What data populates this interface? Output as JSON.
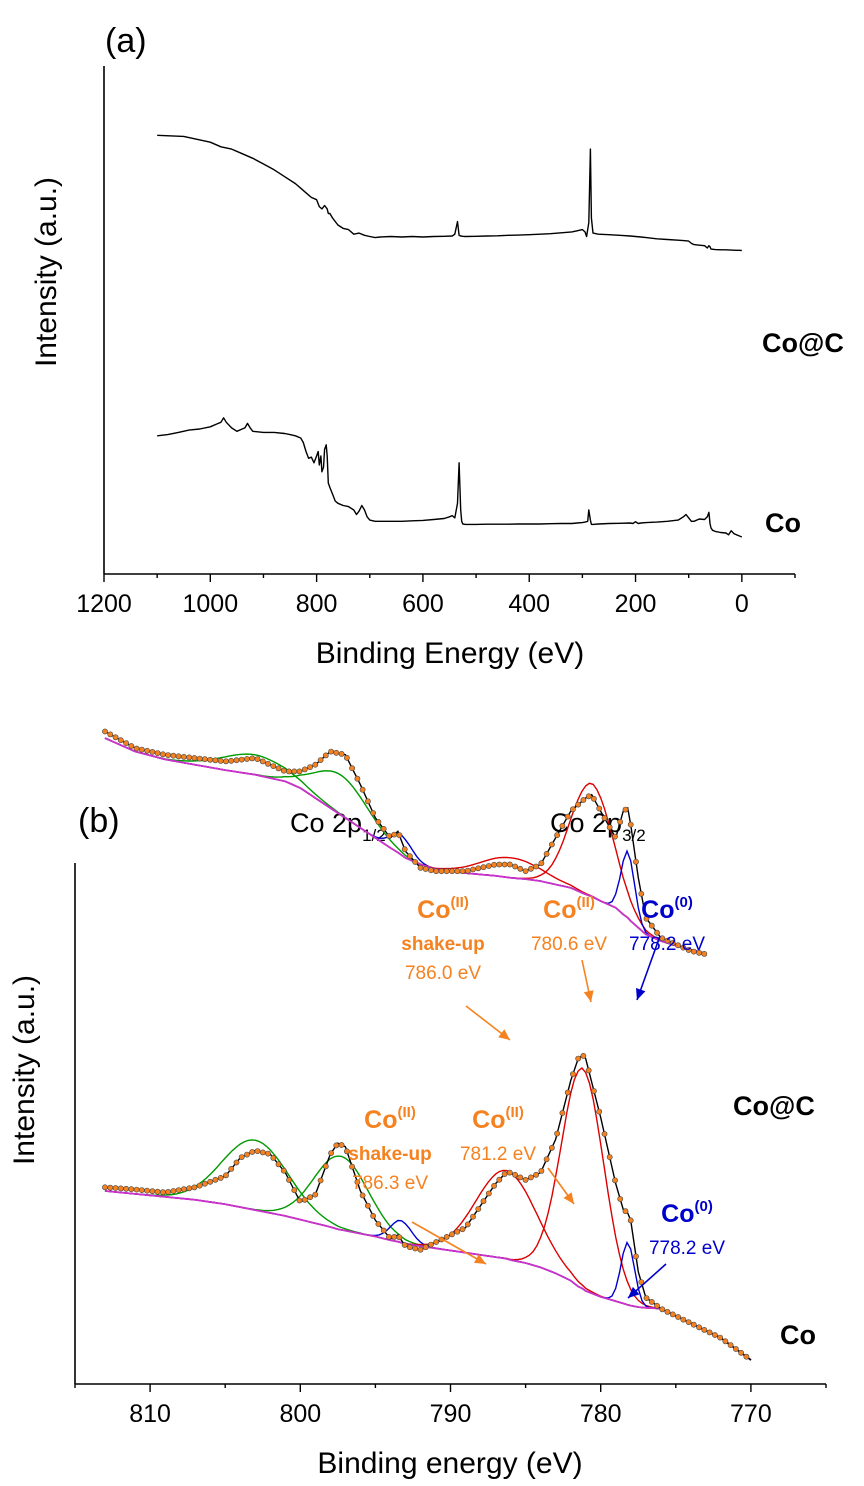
{
  "chart_data": [
    {
      "panel_label": "(a)",
      "type": "line",
      "xlabel": "Binding Energy (eV)",
      "ylabel": "Intensity (a.u.)",
      "xlim": [
        1200,
        -100
      ],
      "x_reversed": true,
      "x_ticks": [
        1200,
        1000,
        800,
        600,
        400,
        200,
        0
      ],
      "y_units": "arbitrary (relative, 0–1)",
      "ylim": [
        0,
        1
      ],
      "grid": false,
      "series": [
        {
          "name": "Co@C",
          "color": "#000000",
          "x": [
            1100,
            1050,
            1000,
            980,
            960,
            940,
            920,
            900,
            880,
            860,
            840,
            830,
            820,
            810,
            800,
            795,
            790,
            785,
            780,
            778,
            775,
            770,
            760,
            750,
            740,
            730,
            720,
            710,
            700,
            690,
            680,
            660,
            640,
            620,
            600,
            580,
            560,
            545,
            540,
            535,
            532,
            529,
            525,
            520,
            500,
            480,
            460,
            440,
            420,
            400,
            380,
            360,
            340,
            320,
            310,
            300,
            295,
            292,
            288,
            285,
            283,
            280,
            270,
            250,
            230,
            210,
            200,
            190,
            180,
            160,
            140,
            120,
            110,
            100,
            95,
            90,
            80,
            70,
            65,
            62,
            60,
            58,
            50,
            40,
            30,
            20,
            10,
            5,
            0
          ],
          "y": [
            0.89,
            0.885,
            0.86,
            0.84,
            0.83,
            0.81,
            0.79,
            0.765,
            0.74,
            0.71,
            0.68,
            0.66,
            0.64,
            0.62,
            0.61,
            0.58,
            0.57,
            0.585,
            0.57,
            0.55,
            0.55,
            0.53,
            0.5,
            0.485,
            0.48,
            0.46,
            0.465,
            0.455,
            0.45,
            0.445,
            0.448,
            0.45,
            0.448,
            0.45,
            0.448,
            0.45,
            0.451,
            0.452,
            0.46,
            0.515,
            0.455,
            0.452,
            0.451,
            0.45,
            0.451,
            0.452,
            0.453,
            0.455,
            0.456,
            0.458,
            0.46,
            0.462,
            0.466,
            0.47,
            0.475,
            0.48,
            0.47,
            0.45,
            0.51,
            0.83,
            0.53,
            0.465,
            0.46,
            0.458,
            0.455,
            0.452,
            0.45,
            0.448,
            0.445,
            0.44,
            0.437,
            0.434,
            0.432,
            0.43,
            0.42,
            0.415,
            0.412,
            0.41,
            0.4,
            0.41,
            0.405,
            0.395,
            0.393,
            0.392,
            0.392,
            0.391,
            0.39,
            0.39,
            0.389
          ]
        },
        {
          "name": "Co",
          "color": "#000000",
          "x": [
            1100,
            1080,
            1060,
            1040,
            1020,
            1000,
            990,
            985,
            980,
            975,
            970,
            960,
            950,
            940,
            935,
            930,
            925,
            920,
            900,
            880,
            860,
            850,
            840,
            830,
            825,
            820,
            815,
            810,
            805,
            800,
            797,
            795,
            792,
            790,
            787,
            785,
            782,
            780,
            778,
            775,
            770,
            765,
            760,
            750,
            740,
            730,
            725,
            720,
            715,
            710,
            705,
            700,
            690,
            680,
            660,
            640,
            620,
            600,
            580,
            560,
            550,
            545,
            540,
            535,
            532,
            529,
            527,
            525,
            520,
            500,
            480,
            460,
            440,
            420,
            400,
            380,
            360,
            340,
            320,
            310,
            300,
            295,
            290,
            288,
            285,
            283,
            280,
            270,
            250,
            230,
            210,
            205,
            200,
            195,
            190,
            180,
            160,
            140,
            120,
            110,
            105,
            100,
            95,
            90,
            80,
            70,
            65,
            62,
            60,
            58,
            55,
            50,
            40,
            30,
            25,
            20,
            15,
            10,
            5,
            0
          ],
          "y": [
            0.45,
            0.455,
            0.465,
            0.475,
            0.48,
            0.49,
            0.5,
            0.505,
            0.51,
            0.53,
            0.51,
            0.485,
            0.47,
            0.48,
            0.485,
            0.505,
            0.485,
            0.47,
            0.465,
            0.465,
            0.46,
            0.455,
            0.45,
            0.44,
            0.42,
            0.38,
            0.35,
            0.355,
            0.33,
            0.36,
            0.38,
            0.32,
            0.36,
            0.29,
            0.31,
            0.39,
            0.41,
            0.36,
            0.24,
            0.22,
            0.19,
            0.16,
            0.15,
            0.14,
            0.135,
            0.12,
            0.1,
            0.115,
            0.14,
            0.12,
            0.09,
            0.075,
            0.07,
            0.07,
            0.07,
            0.07,
            0.072,
            0.074,
            0.078,
            0.082,
            0.09,
            0.095,
            0.085,
            0.15,
            0.33,
            0.12,
            0.07,
            0.058,
            0.056,
            0.056,
            0.057,
            0.057,
            0.057,
            0.058,
            0.058,
            0.058,
            0.059,
            0.06,
            0.06,
            0.062,
            0.064,
            0.066,
            0.07,
            0.12,
            0.075,
            0.056,
            0.056,
            0.058,
            0.06,
            0.061,
            0.062,
            0.06,
            0.068,
            0.06,
            0.062,
            0.064,
            0.066,
            0.07,
            0.075,
            0.09,
            0.1,
            0.085,
            0.07,
            0.07,
            0.08,
            0.078,
            0.09,
            0.11,
            0.06,
            0.04,
            0.03,
            0.025,
            0.02,
            0.018,
            0.01,
            0.028,
            0.015,
            0.01,
            0.005,
            0.0
          ]
        }
      ]
    },
    {
      "panel_label": "(b)",
      "type": "line",
      "xlabel": "Binding energy (eV)",
      "ylabel": "Intensity (a.u.)",
      "xlim": [
        815,
        765
      ],
      "x_reversed": true,
      "x_ticks": [
        810,
        800,
        790,
        780,
        770
      ],
      "y_units": "arbitrary (relative, 0–1)",
      "ylim": [
        0,
        1
      ],
      "grid": false,
      "header_labels": [
        {
          "text": "Co 2p",
          "subscript": "1/2"
        },
        {
          "text": "Co 2p",
          "subscript": "3/2"
        }
      ],
      "colors": {
        "data_points": "#f58220",
        "envelope": "#000000",
        "background": "#cc33cc",
        "co0_component": "#0000cc",
        "co2_component": "#dd0000",
        "satellite_component": "#009900"
      },
      "series": [
        {
          "name": "Co@C",
          "x": [
            813,
            811,
            809,
            807,
            805,
            803,
            801,
            800,
            799,
            798,
            797,
            796,
            795,
            794,
            793.5,
            793,
            792,
            791,
            790,
            789,
            788,
            787,
            786,
            785,
            784,
            783,
            782,
            781,
            780.6,
            780,
            779,
            778.5,
            778.2,
            778,
            777.5,
            777,
            776,
            775,
            774,
            773
          ],
          "y": [
            0.9,
            0.875,
            0.865,
            0.86,
            0.855,
            0.86,
            0.84,
            0.84,
            0.85,
            0.87,
            0.865,
            0.82,
            0.77,
            0.74,
            0.75,
            0.72,
            0.695,
            0.69,
            0.69,
            0.69,
            0.695,
            0.7,
            0.7,
            0.69,
            0.7,
            0.74,
            0.78,
            0.8,
            0.805,
            0.78,
            0.74,
            0.78,
            0.785,
            0.76,
            0.68,
            0.62,
            0.59,
            0.58,
            0.57,
            0.565
          ],
          "background": [
            0.89,
            0.87,
            0.858,
            0.85,
            0.842,
            0.835,
            0.825,
            0.815,
            0.8,
            0.785,
            0.77,
            0.755,
            0.74,
            0.725,
            0.718,
            0.71,
            0.7,
            0.693,
            0.69,
            0.687,
            0.685,
            0.683,
            0.68,
            0.678,
            0.675,
            0.67,
            0.665,
            0.655,
            0.652,
            0.645,
            0.635,
            0.625,
            0.62,
            0.615,
            0.605,
            0.595,
            0.585,
            0.578,
            0.572,
            0.566
          ]
        },
        {
          "name": "Co",
          "x": [
            813,
            811,
            809,
            807,
            805,
            804,
            803,
            802,
            801,
            800,
            799,
            798,
            797.5,
            797,
            796,
            795,
            794,
            793.5,
            793,
            792,
            791,
            790,
            789,
            788,
            787,
            786.3,
            786,
            785,
            784,
            783,
            782,
            781.5,
            781.2,
            781,
            780,
            779,
            778.5,
            778.2,
            778,
            777.5,
            777,
            776,
            775,
            774,
            773,
            772,
            771,
            770
          ],
          "y": [
            0.235,
            0.232,
            0.228,
            0.235,
            0.25,
            0.275,
            0.285,
            0.28,
            0.255,
            0.215,
            0.225,
            0.28,
            0.295,
            0.29,
            0.23,
            0.19,
            0.165,
            0.17,
            0.155,
            0.15,
            0.16,
            0.17,
            0.18,
            0.21,
            0.24,
            0.255,
            0.255,
            0.245,
            0.255,
            0.3,
            0.38,
            0.41,
            0.415,
            0.41,
            0.33,
            0.24,
            0.205,
            0.2,
            0.19,
            0.12,
            0.085,
            0.07,
            0.06,
            0.05,
            0.04,
            0.03,
            0.015,
            0.0
          ],
          "background": [
            0.23,
            0.226,
            0.222,
            0.218,
            0.212,
            0.208,
            0.204,
            0.2,
            0.196,
            0.191,
            0.186,
            0.181,
            0.178,
            0.176,
            0.172,
            0.168,
            0.163,
            0.161,
            0.158,
            0.155,
            0.152,
            0.149,
            0.146,
            0.143,
            0.14,
            0.138,
            0.136,
            0.132,
            0.126,
            0.118,
            0.108,
            0.1,
            0.097,
            0.094,
            0.086,
            0.08,
            0.077,
            0.075,
            0.074,
            0.072,
            0.071,
            0.07,
            0.06,
            0.05,
            0.04,
            0.03,
            0.015,
            0.0
          ]
        }
      ],
      "annotations": [
        {
          "series": "Co@C",
          "species": "Co",
          "oxidation": "(0)",
          "energy": "778.2 eV",
          "color": "#0000cc",
          "x": 778.2
        },
        {
          "series": "Co@C",
          "species": "Co",
          "oxidation": "(II)",
          "energy": "780.6 eV",
          "color": "#f58220",
          "x": 780.6
        },
        {
          "series": "Co@C",
          "species": "Co",
          "oxidation": "(II)",
          "subtitle": "shake-up",
          "energy": "786.0 eV",
          "color": "#f58220",
          "x": 786.0
        },
        {
          "series": "Co",
          "species": "Co",
          "oxidation": "(0)",
          "energy": "778.2 eV",
          "color": "#0000cc",
          "x": 778.2
        },
        {
          "series": "Co",
          "species": "Co",
          "oxidation": "(II)",
          "energy": "781.2 eV",
          "color": "#f58220",
          "x": 781.2
        },
        {
          "series": "Co",
          "species": "Co",
          "oxidation": "(II)",
          "subtitle": "shake-up",
          "energy": "786.3 eV",
          "color": "#f58220",
          "x": 786.3
        }
      ]
    }
  ]
}
